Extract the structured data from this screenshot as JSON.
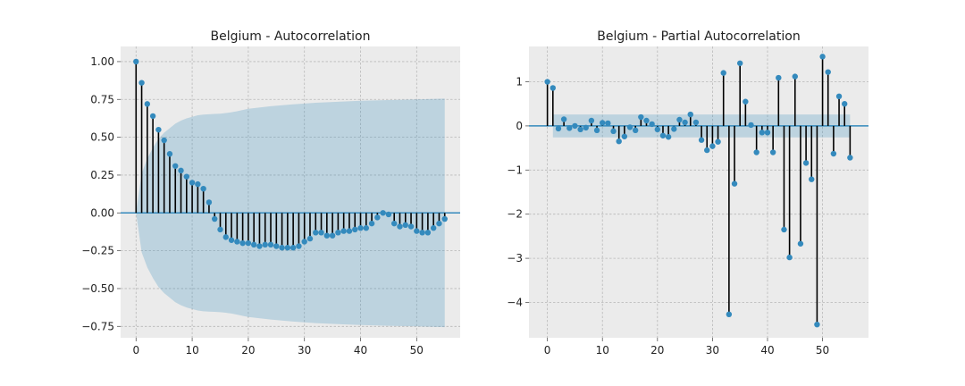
{
  "chart_data": [
    {
      "type": "stem",
      "title": "Belgium - Autocorrelation",
      "xlabel": "",
      "ylabel": "",
      "xlim": [
        -2.75,
        57.75
      ],
      "ylim": [
        -0.825,
        1.1
      ],
      "xticks": [
        0,
        10,
        20,
        30,
        40,
        50
      ],
      "yticks": [
        -0.75,
        -0.5,
        -0.25,
        0.0,
        0.25,
        0.5,
        0.75,
        1.0
      ],
      "ytick_labels": [
        "−0.75",
        "−0.50",
        "−0.25",
        "0.00",
        "0.25",
        "0.50",
        "0.75",
        "1.00"
      ],
      "grid": true,
      "lags": [
        0,
        1,
        2,
        3,
        4,
        5,
        6,
        7,
        8,
        9,
        10,
        11,
        12,
        13,
        14,
        15,
        16,
        17,
        18,
        19,
        20,
        21,
        22,
        23,
        24,
        25,
        26,
        27,
        28,
        29,
        30,
        31,
        32,
        33,
        34,
        35,
        36,
        37,
        38,
        39,
        40,
        41,
        42,
        43,
        44,
        45,
        46,
        47,
        48,
        49,
        50,
        51,
        52,
        53,
        54,
        55
      ],
      "values": [
        1.0,
        0.86,
        0.72,
        0.64,
        0.55,
        0.48,
        0.39,
        0.31,
        0.28,
        0.24,
        0.2,
        0.19,
        0.16,
        0.07,
        -0.04,
        -0.11,
        -0.16,
        -0.18,
        -0.19,
        -0.2,
        -0.2,
        -0.21,
        -0.22,
        -0.21,
        -0.21,
        -0.22,
        -0.23,
        -0.23,
        -0.23,
        -0.22,
        -0.19,
        -0.17,
        -0.13,
        -0.13,
        -0.15,
        -0.15,
        -0.13,
        -0.12,
        -0.12,
        -0.11,
        -0.1,
        -0.1,
        -0.07,
        -0.03,
        0.0,
        -0.01,
        -0.07,
        -0.09,
        -0.08,
        -0.09,
        -0.12,
        -0.13,
        -0.13,
        -0.1,
        -0.07,
        -0.04
      ],
      "confidence_band": {
        "lags": [
          0,
          1,
          2,
          3,
          4,
          5,
          6,
          7,
          8,
          9,
          10,
          11,
          12,
          13,
          14,
          15,
          16,
          17,
          18,
          19,
          20,
          24,
          28,
          32,
          36,
          40,
          45,
          50,
          55
        ],
        "upper": [
          0.0,
          0.26,
          0.36,
          0.43,
          0.49,
          0.53,
          0.56,
          0.59,
          0.61,
          0.625,
          0.635,
          0.645,
          0.65,
          0.652,
          0.654,
          0.656,
          0.66,
          0.665,
          0.672,
          0.68,
          0.688,
          0.705,
          0.718,
          0.728,
          0.735,
          0.741,
          0.746,
          0.75,
          0.755
        ]
      }
    },
    {
      "type": "stem",
      "title": "Belgium - Partial Autocorrelation",
      "xlabel": "",
      "ylabel": "",
      "xlim": [
        -3.35,
        58.35
      ],
      "ylim": [
        -4.8,
        1.8
      ],
      "xticks": [
        0,
        10,
        20,
        30,
        40,
        50
      ],
      "yticks": [
        -4,
        -3,
        -2,
        -1,
        0,
        1
      ],
      "ytick_labels": [
        "−4",
        "−3",
        "−2",
        "−1",
        "0",
        "1"
      ],
      "grid": true,
      "lags": [
        0,
        1,
        2,
        3,
        4,
        5,
        6,
        7,
        8,
        9,
        10,
        11,
        12,
        13,
        14,
        15,
        16,
        17,
        18,
        19,
        20,
        21,
        22,
        23,
        24,
        25,
        26,
        27,
        28,
        29,
        30,
        31,
        32,
        33,
        34,
        35,
        36,
        37,
        38,
        39,
        40,
        41,
        42,
        43,
        44,
        45,
        46,
        47,
        48,
        49,
        50,
        51,
        52,
        53,
        54,
        55
      ],
      "values": [
        1.0,
        0.86,
        -0.06,
        0.15,
        -0.05,
        0.0,
        -0.08,
        -0.04,
        0.12,
        -0.1,
        0.07,
        0.06,
        -0.12,
        -0.35,
        -0.24,
        -0.03,
        -0.1,
        0.2,
        0.12,
        0.04,
        -0.08,
        -0.22,
        -0.25,
        -0.07,
        0.14,
        0.08,
        0.26,
        0.08,
        -0.32,
        -0.55,
        -0.46,
        -0.36,
        1.2,
        -4.27,
        -1.31,
        1.42,
        0.55,
        0.02,
        -0.6,
        -0.15,
        -0.15,
        -0.6,
        1.09,
        -2.35,
        -2.98,
        1.12,
        -2.67,
        -0.84,
        -1.21,
        -4.5,
        1.57,
        1.22,
        -0.63,
        0.67,
        0.5,
        -0.72
      ],
      "confidence_band": {
        "lags": [
          1,
          55
        ],
        "upper": [
          0.26,
          0.26
        ]
      }
    }
  ]
}
